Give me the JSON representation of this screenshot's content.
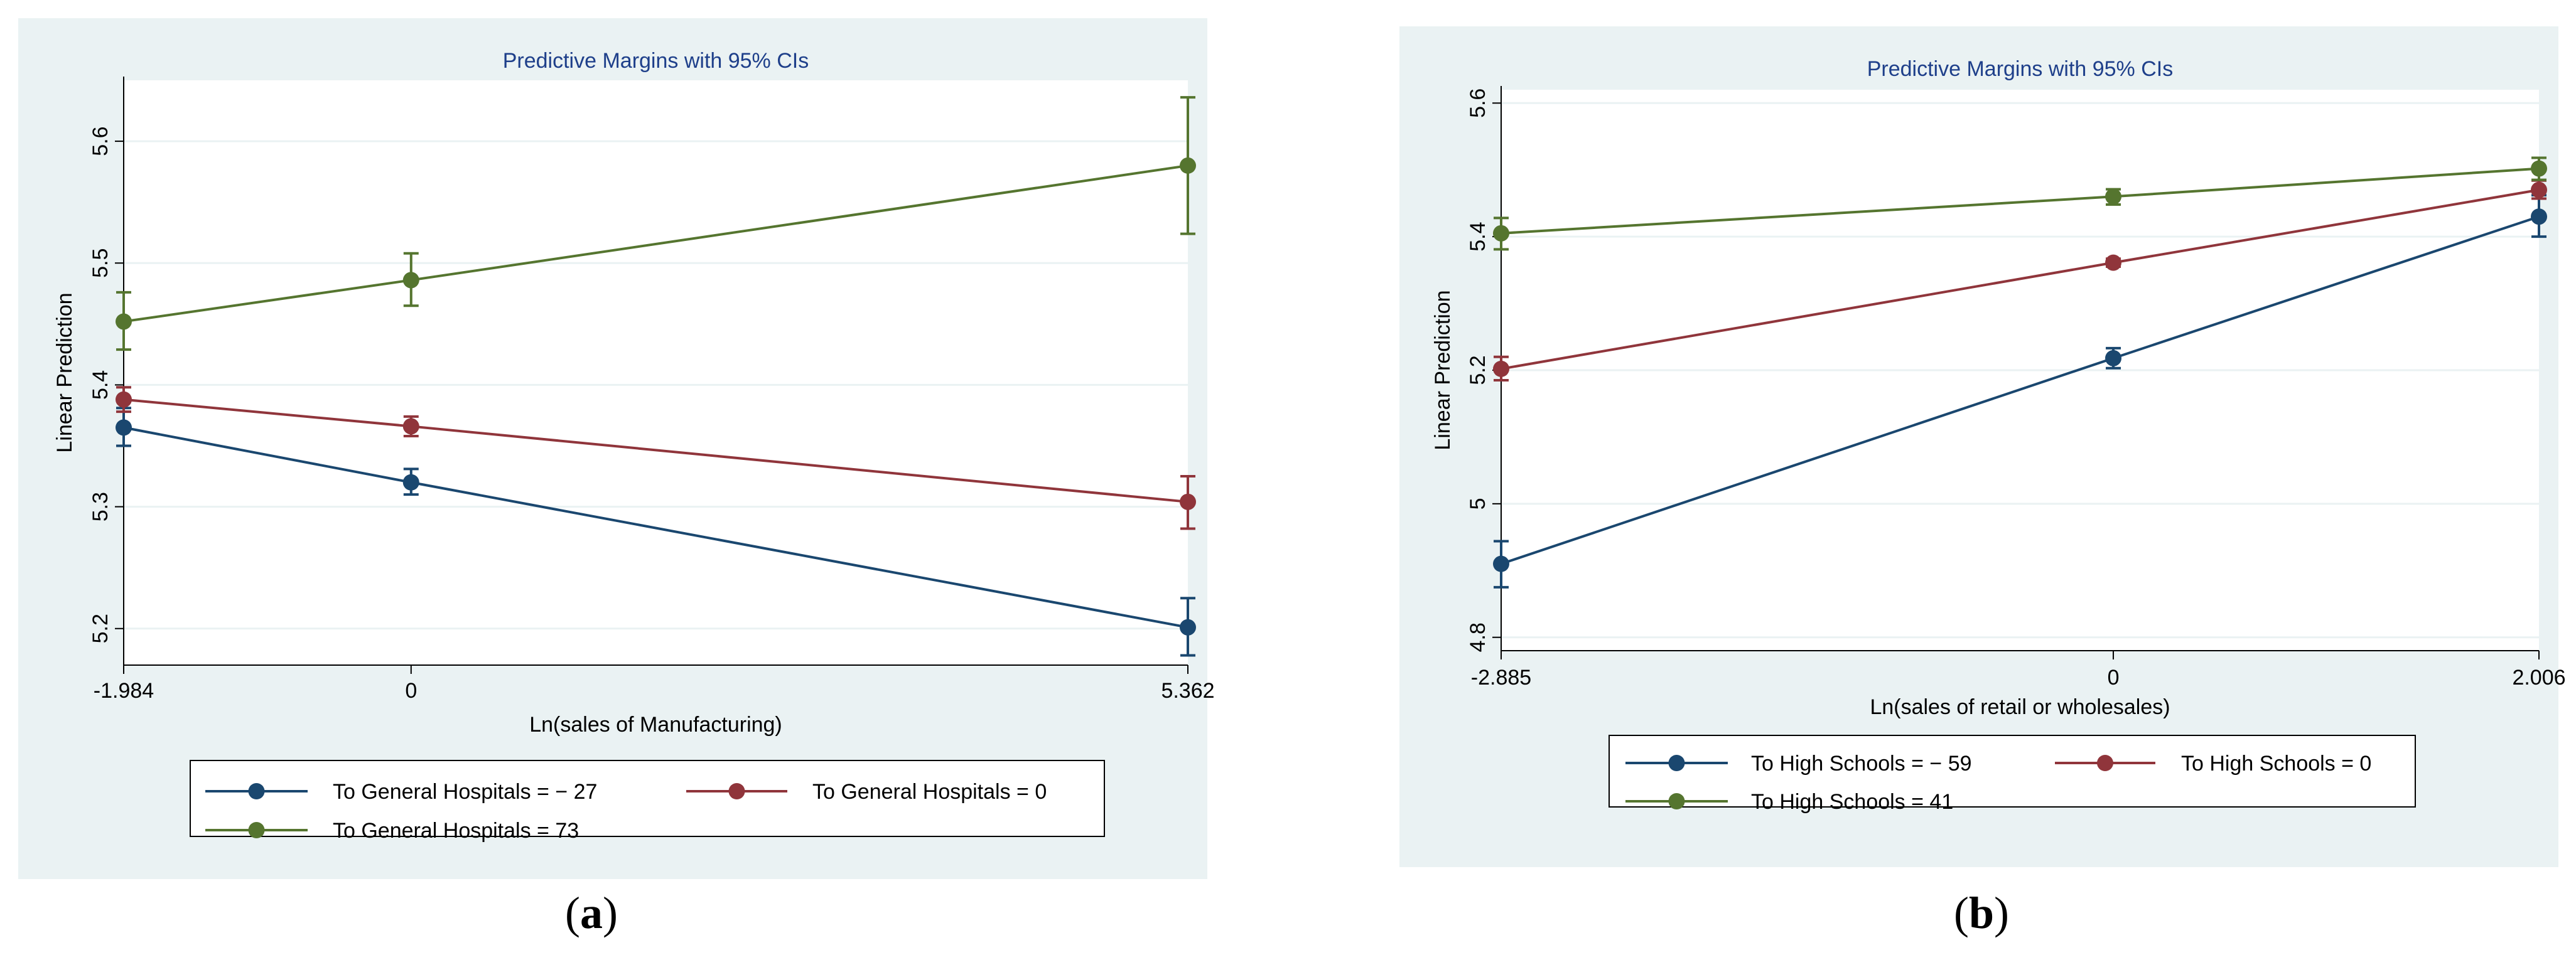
{
  "panels": [
    {
      "id": "a",
      "caption_letter": "a"
    },
    {
      "id": "b",
      "caption_letter": "b"
    }
  ],
  "chart_data": [
    {
      "type": "line",
      "title": "Predictive Margins with 95% CIs",
      "xlabel": "Ln(sales of Manufacturing)",
      "ylabel": "Linear Prediction",
      "x": [
        -1.984,
        0,
        5.362
      ],
      "x_tick_labels": [
        "-1.984",
        "0",
        "5.362"
      ],
      "y_ticks": [
        5.2,
        5.3,
        5.4,
        5.5,
        5.6
      ],
      "y_tick_labels": [
        "5.2",
        "5.3",
        "5.4",
        "5.5",
        "5.6"
      ],
      "ylim": [
        5.17,
        5.65
      ],
      "grid": true,
      "legend_position": "bottom",
      "series": [
        {
          "name": "To General Hospitals = − 27",
          "color": "#1a476f",
          "values": [
            5.365,
            5.32,
            5.201
          ],
          "ci_low": [
            5.35,
            5.31,
            5.178
          ],
          "ci_high": [
            5.381,
            5.331,
            5.225
          ]
        },
        {
          "name": "To General Hospitals = 0",
          "color": "#90353b",
          "values": [
            5.388,
            5.366,
            5.304
          ],
          "ci_low": [
            5.378,
            5.358,
            5.282
          ],
          "ci_high": [
            5.398,
            5.374,
            5.325
          ]
        },
        {
          "name": "To General Hospitals = 73",
          "color": "#55752f",
          "values": [
            5.452,
            5.486,
            5.58
          ],
          "ci_low": [
            5.429,
            5.465,
            5.524
          ],
          "ci_high": [
            5.476,
            5.508,
            5.636
          ]
        }
      ]
    },
    {
      "type": "line",
      "title": "Predictive Margins with 95% CIs",
      "xlabel": "Ln(sales of retail or wholesales)",
      "ylabel": "Linear Prediction",
      "x": [
        -2.885,
        0,
        2.006
      ],
      "x_tick_labels": [
        "-2.885",
        "0",
        "2.006"
      ],
      "y_ticks": [
        4.8,
        5.0,
        5.2,
        5.4,
        5.6
      ],
      "y_tick_labels": [
        "4.8",
        "5",
        "5.2",
        "5.4",
        "5.6"
      ],
      "ylim": [
        4.78,
        5.62
      ],
      "grid": true,
      "legend_position": "bottom",
      "series": [
        {
          "name": "To High Schools = − 59",
          "color": "#1a476f",
          "values": [
            4.91,
            5.218,
            5.43
          ],
          "ci_low": [
            4.875,
            5.203,
            5.4
          ],
          "ci_high": [
            4.944,
            5.233,
            5.462
          ]
        },
        {
          "name": "To High Schools = 0",
          "color": "#90353b",
          "values": [
            5.202,
            5.361,
            5.47
          ],
          "ci_low": [
            5.185,
            5.355,
            5.457
          ],
          "ci_high": [
            5.22,
            5.367,
            5.484
          ]
        },
        {
          "name": "To High Schools = 41",
          "color": "#55752f",
          "values": [
            5.405,
            5.46,
            5.502
          ],
          "ci_low": [
            5.381,
            5.448,
            5.485
          ],
          "ci_high": [
            5.428,
            5.471,
            5.518
          ]
        }
      ]
    }
  ]
}
